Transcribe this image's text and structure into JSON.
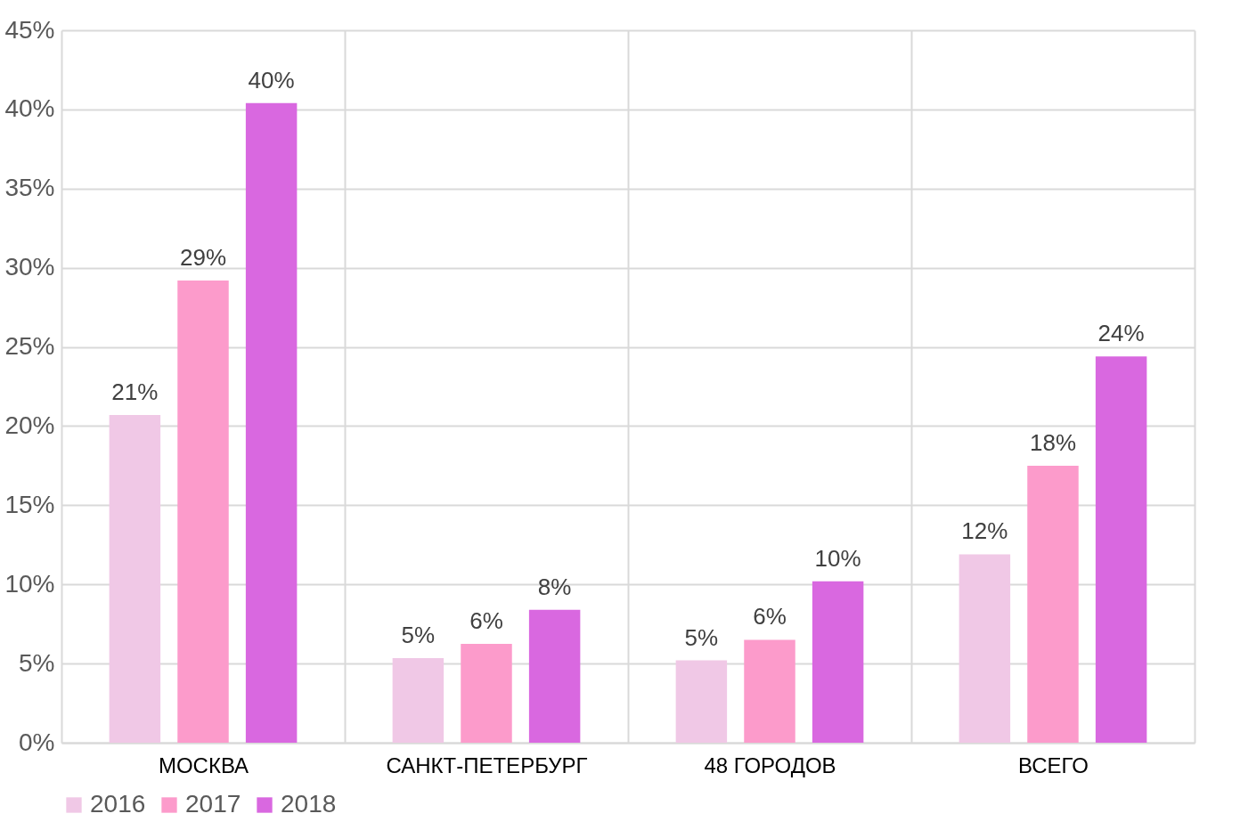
{
  "chart_data": {
    "type": "bar",
    "categories": [
      "МОСКВА",
      "САНКТ-ПЕТЕРБУРГ",
      "48 ГОРОДОВ",
      "ВСЕГО"
    ],
    "series": [
      {
        "name": "2016",
        "color": "#f0c8e6",
        "values": [
          20.7,
          5.35,
          5.2,
          11.9
        ],
        "value_labels": [
          "21%",
          "5%",
          "5%",
          "12%"
        ]
      },
      {
        "name": "2017",
        "color": "#fc9bcb",
        "values": [
          29.2,
          6.25,
          6.5,
          17.5
        ],
        "value_labels": [
          "29%",
          "6%",
          "6%",
          "18%"
        ]
      },
      {
        "name": "2018",
        "color": "#d968e0",
        "values": [
          40.4,
          8.4,
          10.2,
          24.4
        ],
        "value_labels": [
          "40%",
          "8%",
          "10%",
          "24%"
        ]
      }
    ],
    "ylim": [
      0,
      45
    ],
    "yticks": [
      {
        "value": 0,
        "label": "0%"
      },
      {
        "value": 5,
        "label": "5%"
      },
      {
        "value": 10,
        "label": "10%"
      },
      {
        "value": 15,
        "label": "15%"
      },
      {
        "value": 20,
        "label": "20%"
      },
      {
        "value": 25,
        "label": "25%"
      },
      {
        "value": 30,
        "label": "30%"
      },
      {
        "value": 35,
        "label": "35%"
      },
      {
        "value": 40,
        "label": "40%"
      },
      {
        "value": 45,
        "label": "45%"
      }
    ],
    "grid": true,
    "legend": "bottom"
  }
}
